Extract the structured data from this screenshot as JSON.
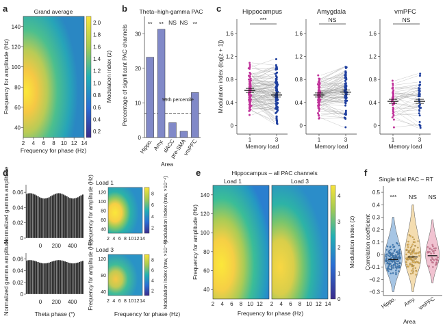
{
  "panel_labels": [
    "a",
    "b",
    "c",
    "d",
    "e",
    "f"
  ],
  "chart_data": [
    {
      "panel": "a",
      "type": "heatmap",
      "title": "Grand average",
      "xlabel": "Frequency for phase (Hz)",
      "ylabel": "Frequency for amplitude (Hz)",
      "xticks": [
        "2",
        "4",
        "6",
        "8",
        "10",
        "12",
        "14"
      ],
      "yticks": [
        "40",
        "60",
        "80",
        "100",
        "120",
        "140"
      ],
      "xlim": [
        2,
        14
      ],
      "ylim": [
        30,
        150
      ],
      "colorbar": {
        "label": "Modulation index (z)",
        "ticks": [
          "0.2",
          "0.4",
          "0.6",
          "0.8",
          "1.0",
          "1.2",
          "1.4",
          "1.6",
          "1.8",
          "2.0"
        ],
        "range": [
          0.1,
          2.1
        ]
      }
    },
    {
      "panel": "b",
      "type": "bar",
      "title": "Theta–high-gamma PAC",
      "categories": [
        "Hippo.",
        "Amy.",
        "dACC",
        "pre-SMA",
        "vmPFC"
      ],
      "values": [
        23.2,
        31.3,
        4.3,
        1.8,
        13.0
      ],
      "significance": [
        "**",
        "**",
        "NS",
        "NS",
        "**"
      ],
      "threshold": 7,
      "threshold_label": "99th percentile",
      "xlabel": "Area",
      "ylabel": "Percentage of significant PAC channels",
      "ylim": [
        0,
        35
      ],
      "yticks": [
        "0",
        "10",
        "20",
        "30"
      ],
      "bar_color": "#8189c8"
    },
    {
      "panel": "c",
      "type": "scatter",
      "ylabel": "Modulation index (log[z + 1])",
      "xlabel": "Memory load",
      "xticks": [
        "1",
        "3"
      ],
      "yticks": [
        "0",
        "0.4",
        "0.8",
        "1.2",
        "1.6"
      ],
      "ylim": [
        -0.15,
        1.85
      ],
      "load1_color": "#c0339a",
      "load3_color": "#1f3f9e",
      "series": [
        {
          "name": "Hippocampus",
          "significance": "***",
          "mean_load1": 0.61,
          "mean_load3": 0.53
        },
        {
          "name": "Amygdala",
          "significance": "NS",
          "mean_load1": 0.53,
          "mean_load3": 0.58
        },
        {
          "name": "vmPFC",
          "significance": "NS",
          "mean_load1": 0.42,
          "mean_load3": 0.42
        }
      ]
    },
    {
      "panel": "d",
      "type": "bar",
      "xlabel": "Theta phase (°)",
      "ylabel": "Normalized gamma amplitude",
      "xticks": [
        "0",
        "200",
        "400"
      ],
      "yticks": [
        "0",
        "0.02",
        "0.04",
        "0.06"
      ],
      "ylim": [
        0,
        0.07
      ],
      "series": [
        {
          "name": "Load 1"
        },
        {
          "name": "Load 3"
        }
      ],
      "heatmap": {
        "xlabel": "Frequency for phase (Hz)",
        "ylabel": "Frequency for amplitude (Hz)",
        "xticks": [
          "2",
          "4",
          "6",
          "8",
          "10",
          "12",
          "14"
        ],
        "yticks_load1": [
          "40",
          "60",
          "80",
          "100",
          "120"
        ],
        "yticks_load3": [
          "40",
          "80",
          "120"
        ],
        "colorbar_label": "Modulation index (raw, ×10⁻⁴)",
        "colorbar_ticks": [
          "2",
          "4",
          "6",
          "8"
        ]
      }
    },
    {
      "panel": "e",
      "type": "heatmap",
      "title": "Hippocampus – all PAC channels",
      "subtitles": [
        "Load 1",
        "Load 3"
      ],
      "xlabel": "Frequency for phase (Hz)",
      "ylabel": "Frequency for amplitude (Hz)",
      "xticks_left": [
        "2",
        "4",
        "6",
        "8",
        "10",
        "12"
      ],
      "xticks_right": [
        "2",
        "4",
        "6",
        "8",
        "10",
        "12",
        "14"
      ],
      "yticks": [
        "40",
        "60",
        "80",
        "100",
        "120",
        "140"
      ],
      "ylim": [
        30,
        150
      ],
      "colorbar": {
        "label": "Modulation index (z)",
        "ticks": [
          "0",
          "1",
          "2",
          "3",
          "4"
        ],
        "range": [
          0,
          4.4
        ]
      }
    },
    {
      "panel": "f",
      "type": "scatter",
      "title": "Single trial PAC – RT",
      "categories": [
        "Hippo.",
        "Amy.",
        "vmPFC"
      ],
      "significance": [
        "***",
        "NS",
        "NS"
      ],
      "medians": [
        -0.04,
        -0.02,
        -0.01
      ],
      "xlabel": "Area",
      "ylabel": "Correlation coefficient",
      "yticks": [
        "−0.3",
        "−0.2",
        "−0.1",
        "0",
        "0.1",
        "0.2",
        "0.3",
        "0.4",
        "0.5"
      ],
      "ylim": [
        -0.33,
        0.55
      ],
      "colors": [
        "#3a7fc4",
        "#e6b44f",
        "#e07a9a"
      ]
    }
  ]
}
